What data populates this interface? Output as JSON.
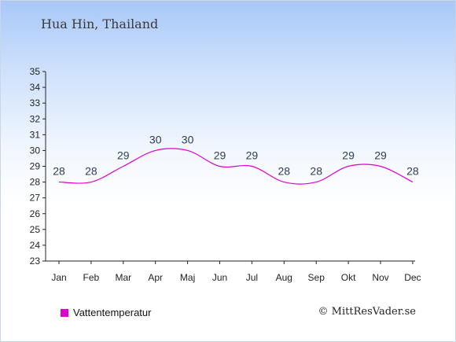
{
  "header": {
    "title": "Hua Hin, Thailand"
  },
  "legend": {
    "label": "Vattentemperatur",
    "color": "#dd00cc"
  },
  "credit": {
    "text": "© MittResVader.se"
  },
  "chart_data": {
    "type": "line",
    "title": "Hua Hin, Thailand",
    "xlabel": "",
    "ylabel": "",
    "categories": [
      "Jan",
      "Feb",
      "Mar",
      "Apr",
      "Maj",
      "Jun",
      "Jul",
      "Aug",
      "Sep",
      "Okt",
      "Nov",
      "Dec"
    ],
    "series": [
      {
        "name": "Vattentemperatur",
        "color": "#dd00cc",
        "values": [
          28,
          28,
          29,
          30,
          30,
          29,
          29,
          28,
          28,
          29,
          29,
          28
        ]
      }
    ],
    "ylim": [
      23,
      35
    ],
    "yticks": [
      23,
      24,
      25,
      26,
      27,
      28,
      29,
      30,
      31,
      32,
      33,
      34,
      35
    ],
    "grid": false,
    "legend_position": "bottom-left"
  }
}
